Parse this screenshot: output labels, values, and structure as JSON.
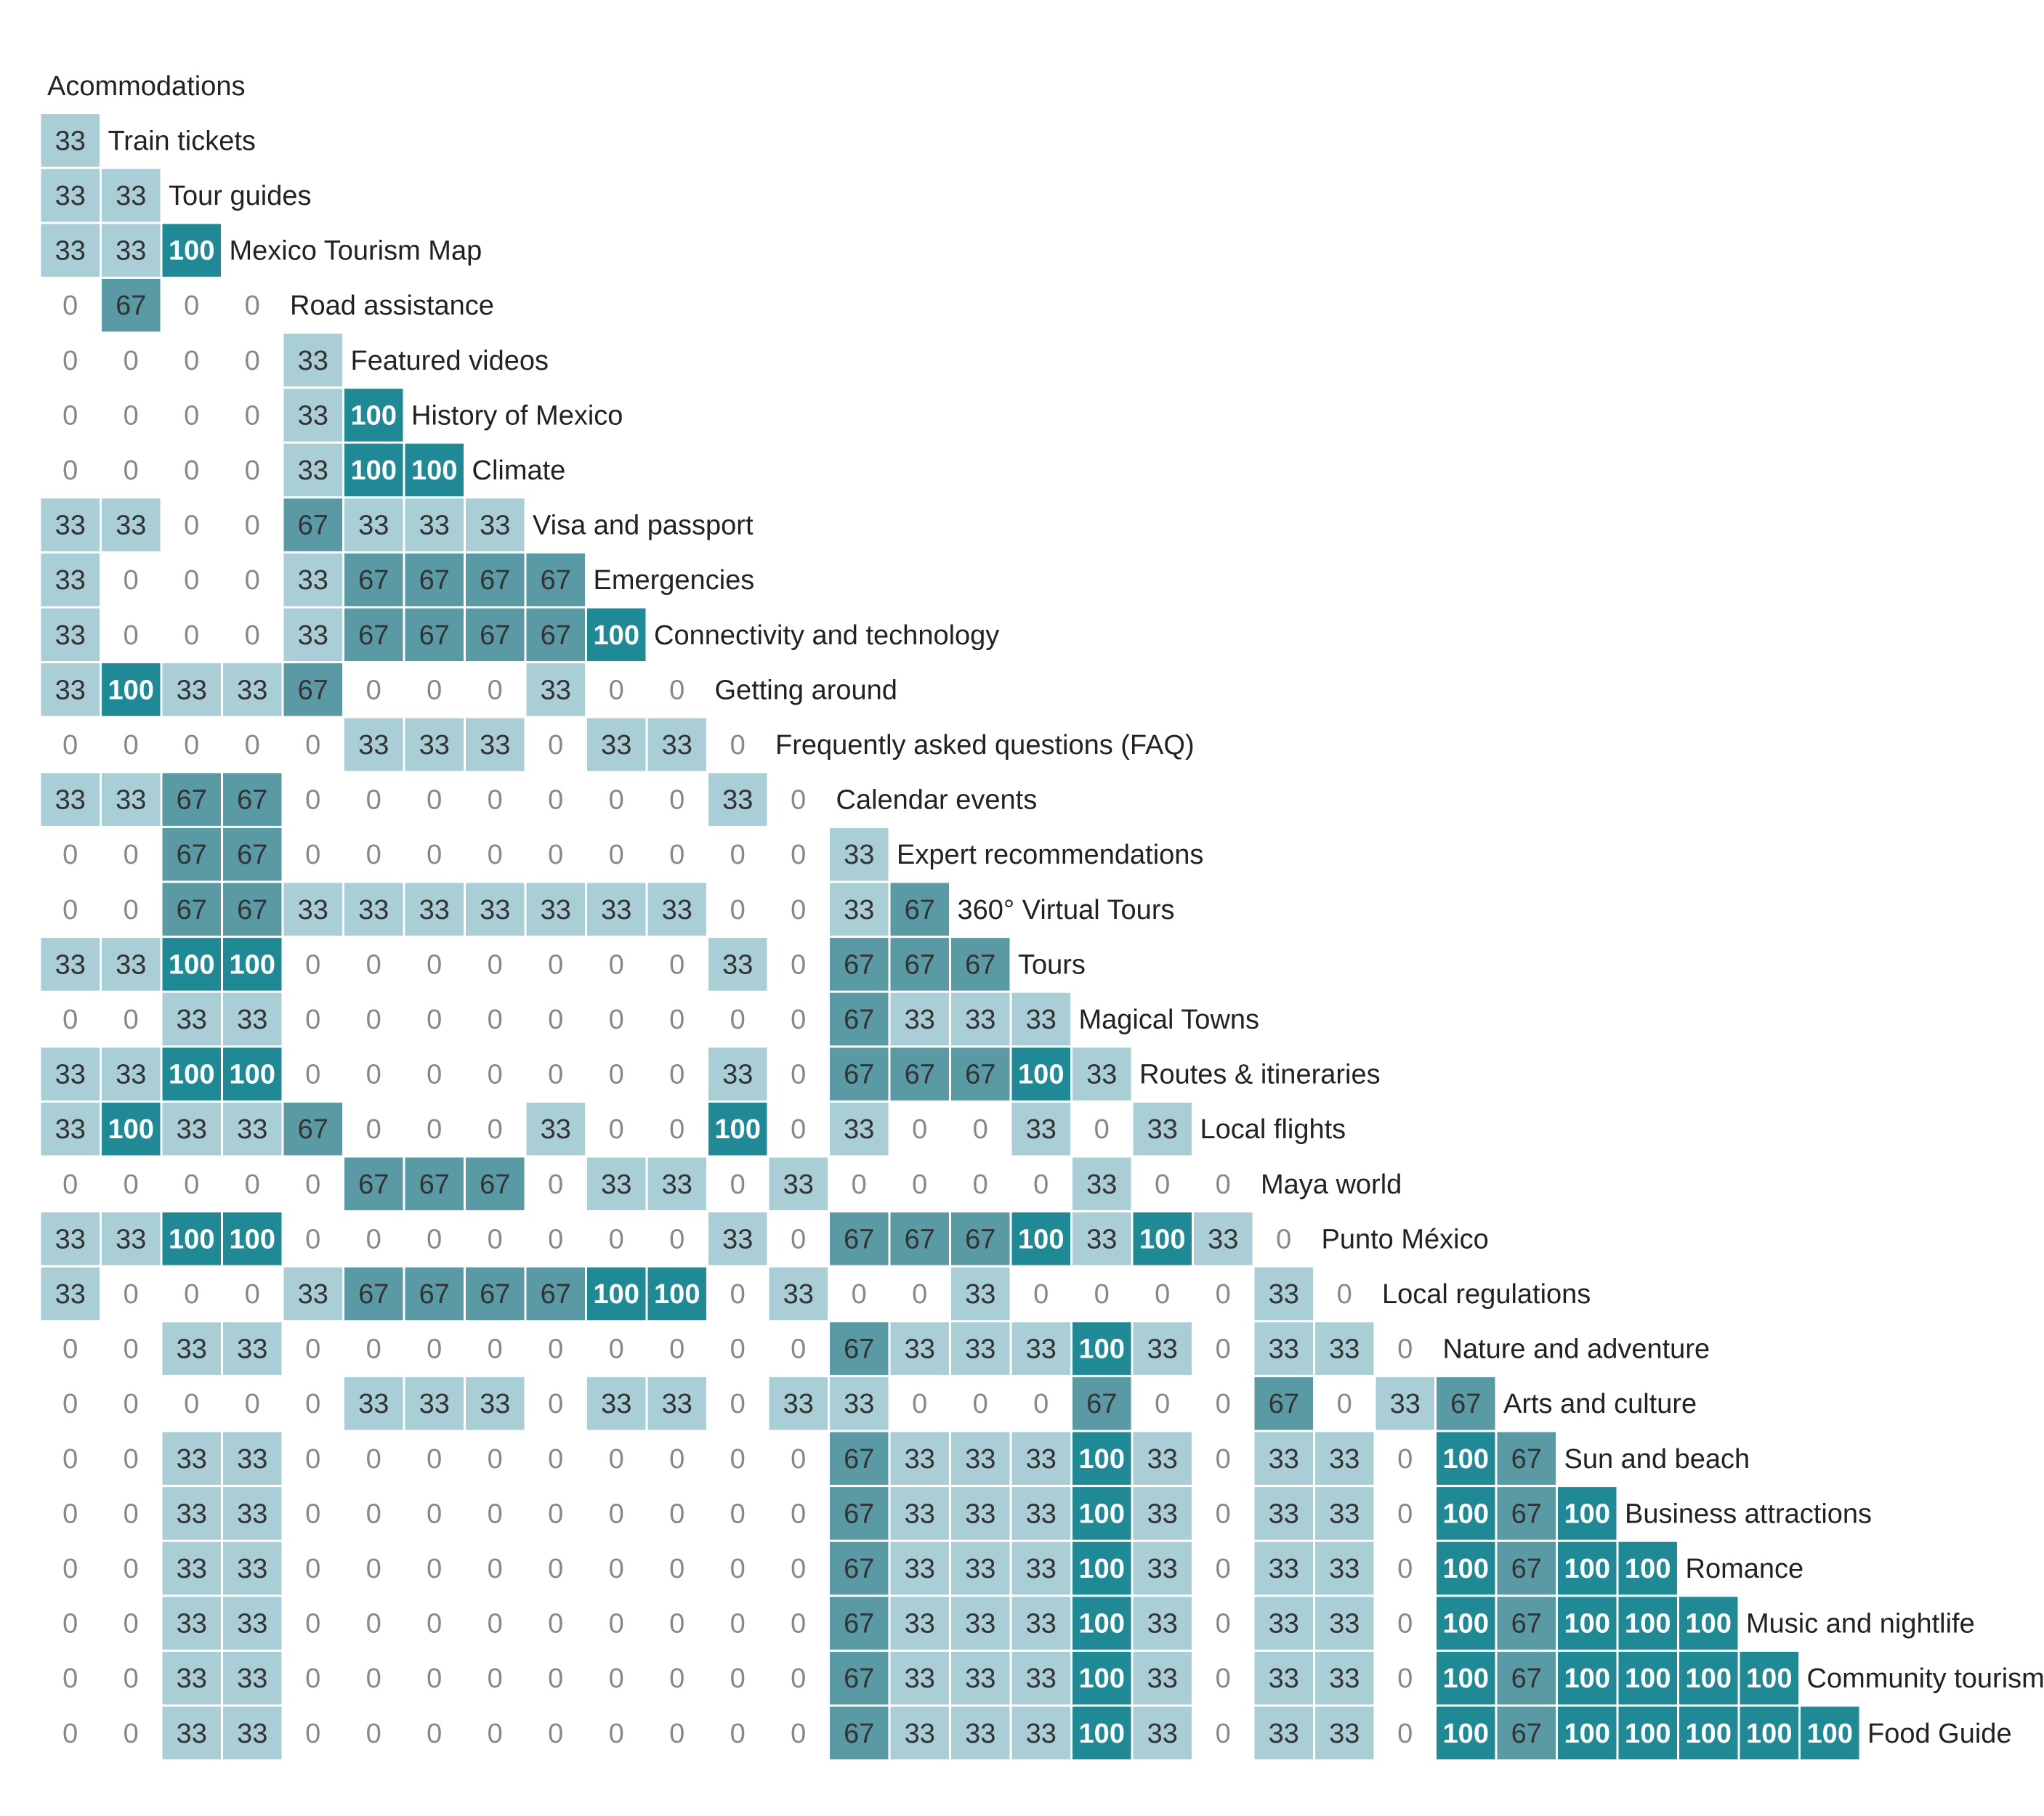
{
  "chart_data": {
    "type": "heatmap",
    "title": "",
    "labels": [
      "Acommodations",
      "Train tickets",
      "Tour guides",
      "Mexico Tourism Map",
      "Road assistance",
      "Featured videos",
      "History of Mexico",
      "Climate",
      "Visa and passport",
      "Emergencies",
      "Connectivity and technology",
      "Getting around",
      "Frequently asked questions (FAQ)",
      "Calendar events",
      "Expert recommendations",
      "360° Virtual Tours",
      "Tours",
      "Magical Towns",
      "Routes & itineraries",
      "Local flights",
      "Maya world",
      "Punto México",
      "Local regulations",
      "Nature and adventure",
      "Arts and culture",
      "Sun and beach",
      "Business attractions",
      "Romance",
      "Music and nightlife",
      "Community tourism",
      "Food Guide"
    ],
    "values": [
      [],
      [
        33
      ],
      [
        33,
        33
      ],
      [
        33,
        33,
        100
      ],
      [
        0,
        67,
        0,
        0
      ],
      [
        0,
        0,
        0,
        0,
        33
      ],
      [
        0,
        0,
        0,
        0,
        33,
        100
      ],
      [
        0,
        0,
        0,
        0,
        33,
        100,
        100
      ],
      [
        33,
        33,
        0,
        0,
        67,
        33,
        33,
        33
      ],
      [
        33,
        0,
        0,
        0,
        33,
        67,
        67,
        67,
        67
      ],
      [
        33,
        0,
        0,
        0,
        33,
        67,
        67,
        67,
        67,
        100
      ],
      [
        33,
        100,
        33,
        33,
        67,
        0,
        0,
        0,
        33,
        0,
        0
      ],
      [
        0,
        0,
        0,
        0,
        0,
        33,
        33,
        33,
        0,
        33,
        33,
        0
      ],
      [
        33,
        33,
        67,
        67,
        0,
        0,
        0,
        0,
        0,
        0,
        0,
        33,
        0
      ],
      [
        0,
        0,
        67,
        67,
        0,
        0,
        0,
        0,
        0,
        0,
        0,
        0,
        0,
        33
      ],
      [
        0,
        0,
        67,
        67,
        33,
        33,
        33,
        33,
        33,
        33,
        33,
        0,
        0,
        33,
        67
      ],
      [
        33,
        33,
        100,
        100,
        0,
        0,
        0,
        0,
        0,
        0,
        0,
        33,
        0,
        67,
        67,
        67
      ],
      [
        0,
        0,
        33,
        33,
        0,
        0,
        0,
        0,
        0,
        0,
        0,
        0,
        0,
        67,
        33,
        33,
        33
      ],
      [
        33,
        33,
        100,
        100,
        0,
        0,
        0,
        0,
        0,
        0,
        0,
        33,
        0,
        67,
        67,
        67,
        100,
        33
      ],
      [
        33,
        100,
        33,
        33,
        67,
        0,
        0,
        0,
        33,
        0,
        0,
        100,
        0,
        33,
        0,
        0,
        33,
        0,
        33
      ],
      [
        0,
        0,
        0,
        0,
        0,
        67,
        67,
        67,
        0,
        33,
        33,
        0,
        33,
        0,
        0,
        0,
        0,
        33,
        0,
        0
      ],
      [
        33,
        33,
        100,
        100,
        0,
        0,
        0,
        0,
        0,
        0,
        0,
        33,
        0,
        67,
        67,
        67,
        100,
        33,
        100,
        33,
        0
      ],
      [
        33,
        0,
        0,
        0,
        33,
        67,
        67,
        67,
        67,
        100,
        100,
        0,
        33,
        0,
        0,
        33,
        0,
        0,
        0,
        0,
        33,
        0
      ],
      [
        0,
        0,
        33,
        33,
        0,
        0,
        0,
        0,
        0,
        0,
        0,
        0,
        0,
        67,
        33,
        33,
        33,
        100,
        33,
        0,
        33,
        33,
        0
      ],
      [
        0,
        0,
        0,
        0,
        0,
        33,
        33,
        33,
        0,
        33,
        33,
        0,
        33,
        33,
        0,
        0,
        0,
        67,
        0,
        0,
        67,
        0,
        33,
        67
      ],
      [
        0,
        0,
        33,
        33,
        0,
        0,
        0,
        0,
        0,
        0,
        0,
        0,
        0,
        67,
        33,
        33,
        33,
        100,
        33,
        0,
        33,
        33,
        0,
        100,
        67
      ],
      [
        0,
        0,
        33,
        33,
        0,
        0,
        0,
        0,
        0,
        0,
        0,
        0,
        0,
        67,
        33,
        33,
        33,
        100,
        33,
        0,
        33,
        33,
        0,
        100,
        67,
        100
      ],
      [
        0,
        0,
        33,
        33,
        0,
        0,
        0,
        0,
        0,
        0,
        0,
        0,
        0,
        67,
        33,
        33,
        33,
        100,
        33,
        0,
        33,
        33,
        0,
        100,
        67,
        100,
        100
      ],
      [
        0,
        0,
        33,
        33,
        0,
        0,
        0,
        0,
        0,
        0,
        0,
        0,
        0,
        67,
        33,
        33,
        33,
        100,
        33,
        0,
        33,
        33,
        0,
        100,
        67,
        100,
        100,
        100
      ],
      [
        0,
        0,
        33,
        33,
        0,
        0,
        0,
        0,
        0,
        0,
        0,
        0,
        0,
        67,
        33,
        33,
        33,
        100,
        33,
        0,
        33,
        33,
        0,
        100,
        67,
        100,
        100,
        100,
        100
      ],
      [
        0,
        0,
        33,
        33,
        0,
        0,
        0,
        0,
        0,
        0,
        0,
        0,
        0,
        67,
        33,
        33,
        33,
        100,
        33,
        0,
        33,
        33,
        0,
        100,
        67,
        100,
        100,
        100,
        100,
        100
      ]
    ],
    "color_scale": {
      "0": "#ffffff",
      "33": "#a9ced6",
      "67": "#5a9aa5",
      "100": "#1f8a96"
    },
    "text_colors": {
      "0": "#888888",
      "33": "#333333",
      "67": "#333333",
      "100": "#ffffff"
    }
  }
}
